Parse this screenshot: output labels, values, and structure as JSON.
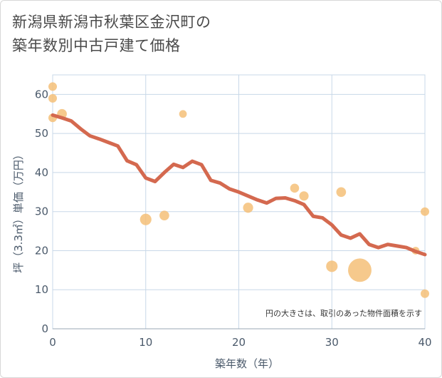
{
  "title_line1": "新潟県新潟市秋葉区金沢町の",
  "title_line2": "築年数別中古戸建て価格",
  "colors": {
    "line": "#d4694f",
    "bubble": "#f5c078",
    "grid": "#c8d8e8",
    "axis_text": "#4b5a6b"
  },
  "chart_data": {
    "type": "scatter",
    "title": "新潟県新潟市秋葉区金沢町の築年数別中古戸建て価格",
    "xlabel": "築年数（年）",
    "ylabel": "坪（3.3㎡）単価（万円）",
    "xlim": [
      0,
      40
    ],
    "ylim": [
      0,
      65
    ],
    "xticks": [
      0,
      10,
      20,
      30,
      40
    ],
    "yticks": [
      0,
      10,
      20,
      30,
      40,
      50,
      60
    ],
    "note": "円の大きさは、取引のあった物件面積を示す",
    "bubbles": [
      {
        "x": 0,
        "y": 62,
        "size": 1
      },
      {
        "x": 0,
        "y": 59,
        "size": 1
      },
      {
        "x": 0,
        "y": 54,
        "size": 1
      },
      {
        "x": 1,
        "y": 55,
        "size": 1.3
      },
      {
        "x": 14,
        "y": 55,
        "size": 0.8
      },
      {
        "x": 10,
        "y": 28,
        "size": 1.8
      },
      {
        "x": 12,
        "y": 29,
        "size": 1.3
      },
      {
        "x": 21,
        "y": 31,
        "size": 1.4
      },
      {
        "x": 26,
        "y": 36,
        "size": 1.1
      },
      {
        "x": 27,
        "y": 34,
        "size": 1.2
      },
      {
        "x": 31,
        "y": 35,
        "size": 1.3
      },
      {
        "x": 30,
        "y": 16,
        "size": 1.8
      },
      {
        "x": 33,
        "y": 15,
        "size": 7.5
      },
      {
        "x": 39,
        "y": 20,
        "size": 0.8
      },
      {
        "x": 40,
        "y": 30,
        "size": 1
      },
      {
        "x": 40,
        "y": 9,
        "size": 1
      }
    ],
    "trend": {
      "x": [
        0,
        1,
        2,
        3,
        4,
        5,
        6,
        7,
        8,
        9,
        10,
        11,
        12,
        13,
        14,
        15,
        16,
        17,
        18,
        19,
        20,
        21,
        22,
        23,
        24,
        25,
        26,
        27,
        28,
        29,
        30,
        31,
        32,
        33,
        34,
        35,
        36,
        37,
        38,
        39,
        40
      ],
      "y": [
        54.7,
        54,
        53.2,
        51.2,
        49.4,
        48.6,
        47.7,
        46.8,
        43,
        42,
        38.6,
        37.7,
        40,
        42.1,
        41.3,
        42.9,
        42,
        38,
        37.3,
        35.8,
        35,
        34,
        33,
        32.2,
        33.4,
        33.5,
        32.8,
        31.8,
        28.8,
        28.4,
        26.6,
        24,
        23.2,
        24.3,
        21.6,
        20.8,
        21.6,
        21.2,
        20.8,
        19.8,
        19
      ]
    }
  }
}
